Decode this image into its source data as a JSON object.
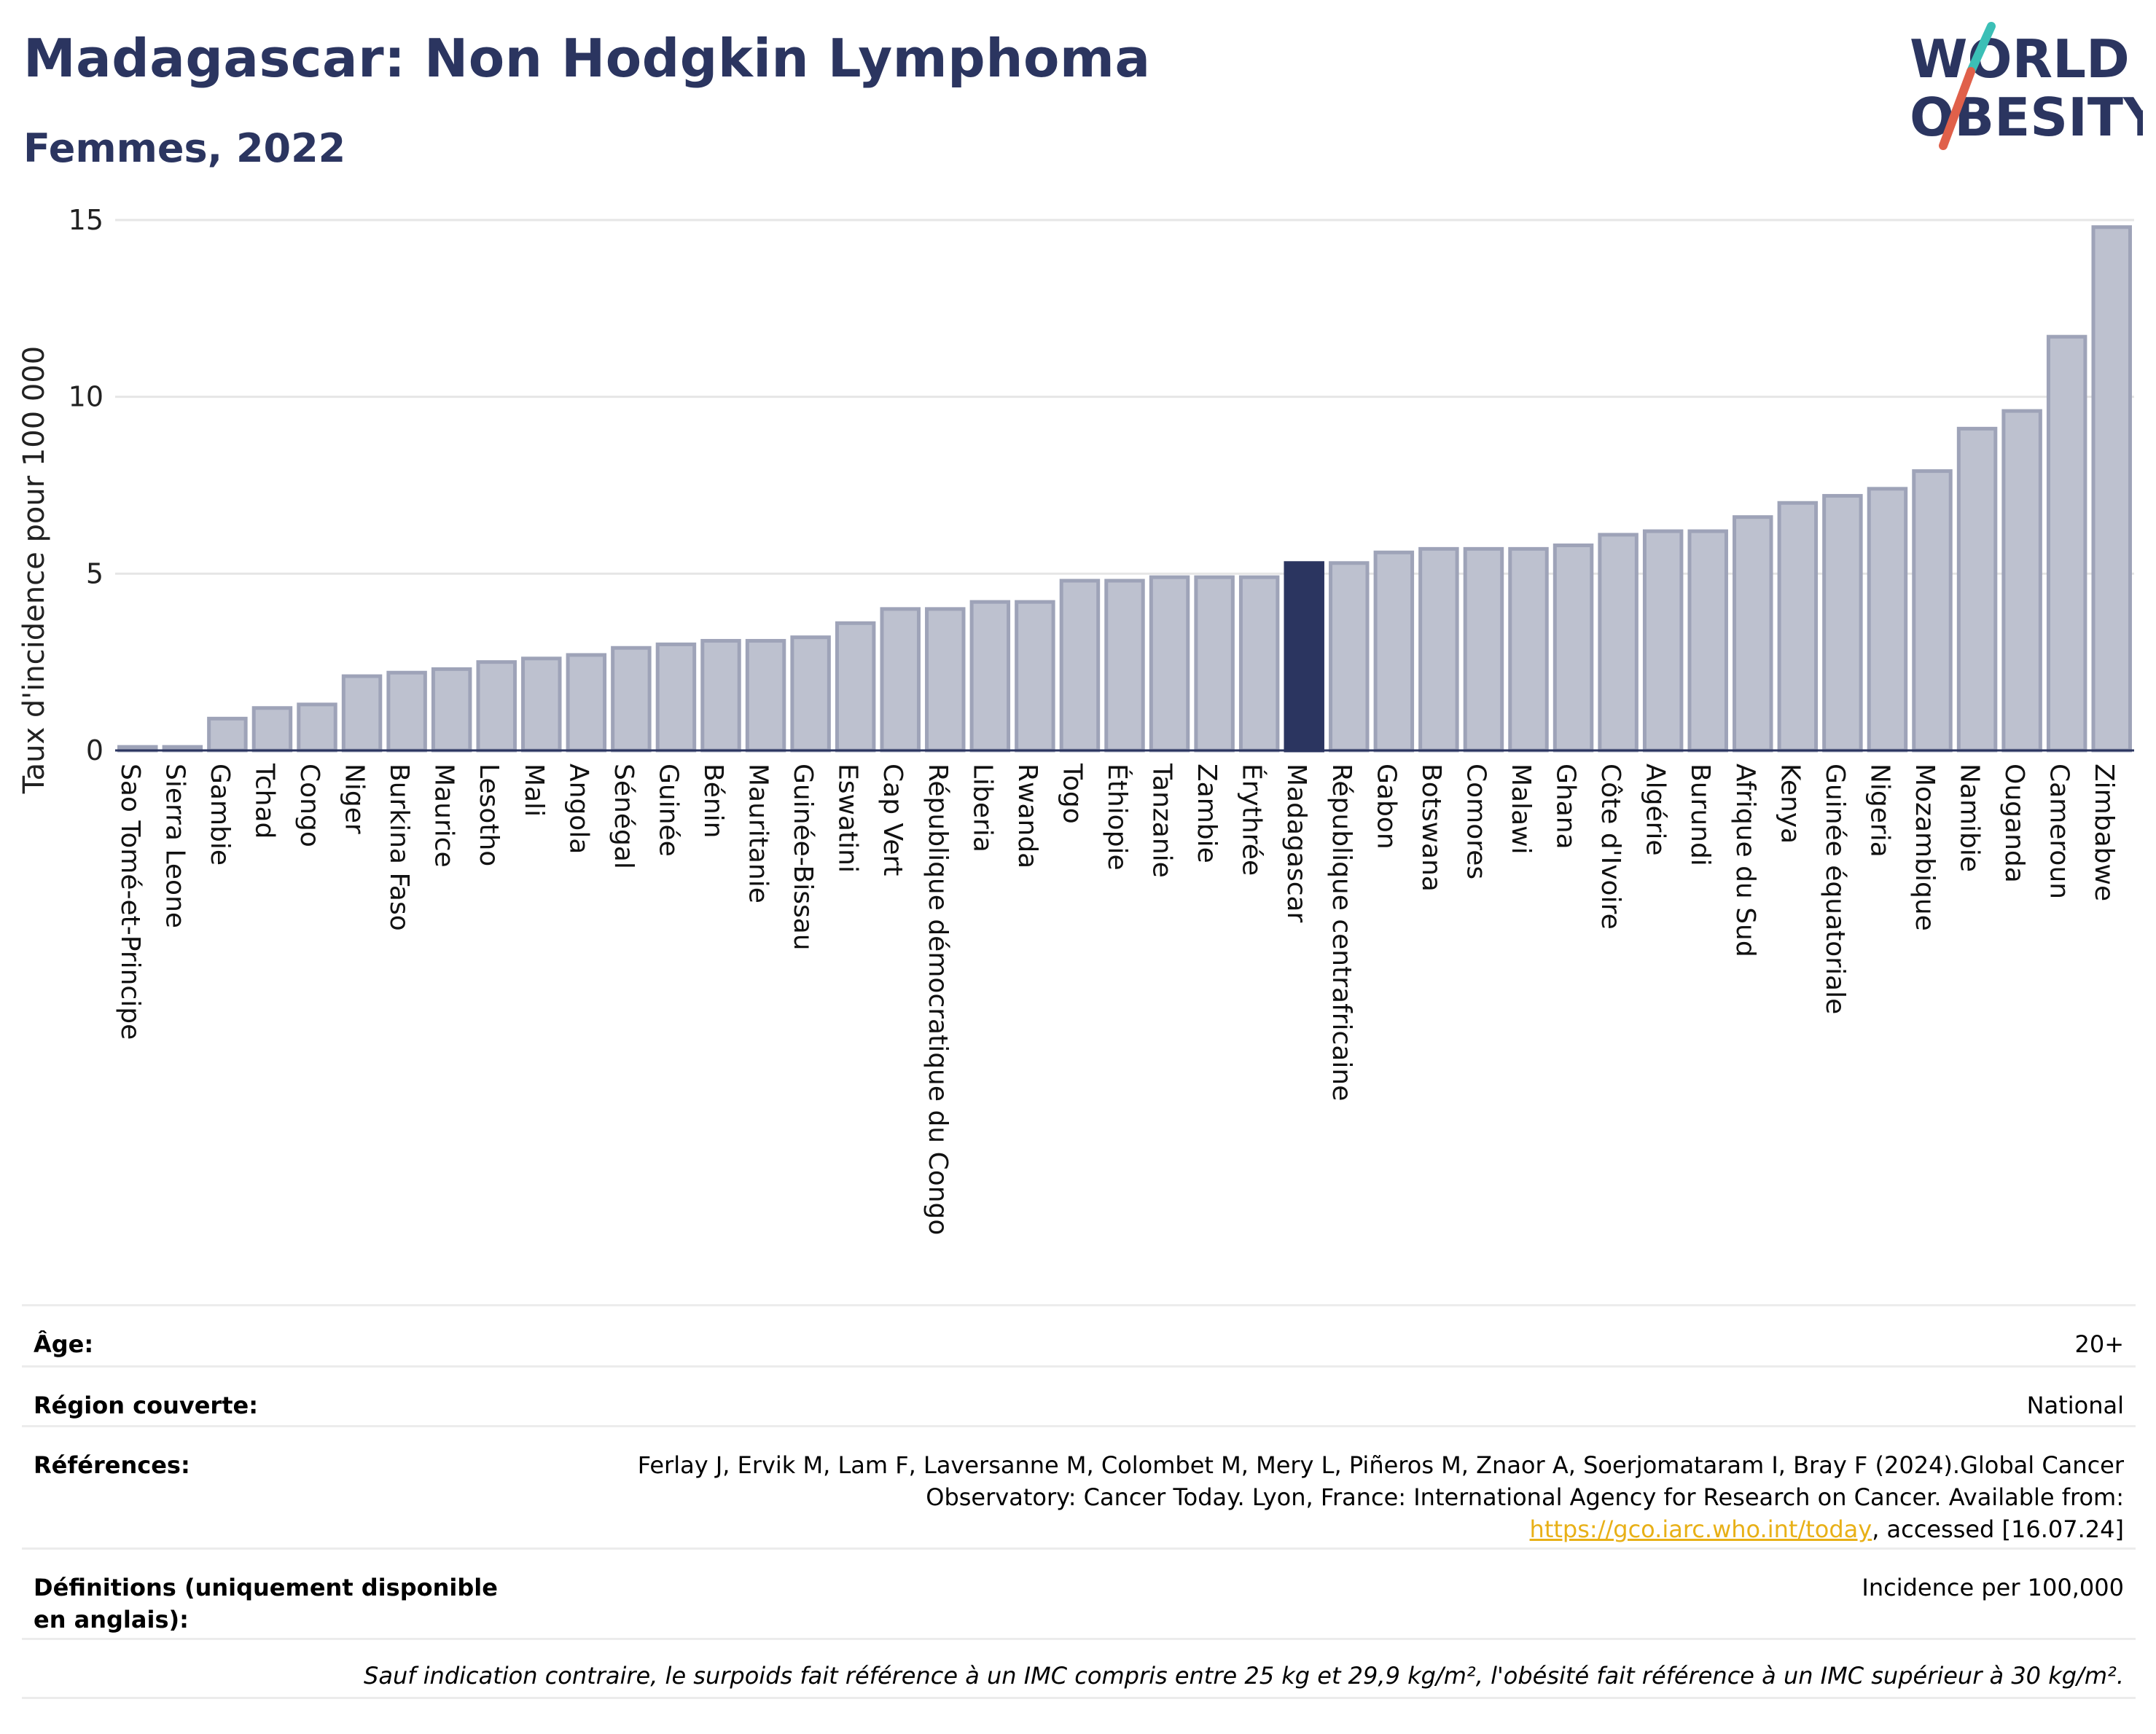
{
  "header": {
    "title": "Madagascar: Non Hodgkin Lymphoma",
    "subtitle": "Femmes, 2022"
  },
  "logo": {
    "line1": "WORLD",
    "line2": "OBESITY"
  },
  "colors": {
    "highlight": "#2b3560",
    "bar": "#bdc1cf",
    "bar_border": "#9ea3b8",
    "accent_link": "#e8b017"
  },
  "chart_data": {
    "type": "bar",
    "ylabel": "Taux d'incidence pour 100 000",
    "ylim": [
      0,
      15
    ],
    "yticks": [
      0,
      5,
      10,
      15
    ],
    "grid": true,
    "highlight": "Madagascar",
    "categories": [
      "Sao Tomé-et-Principe",
      "Sierra Leone",
      "Gambie",
      "Tchad",
      "Congo",
      "Niger",
      "Burkina Faso",
      "Maurice",
      "Lesotho",
      "Mali",
      "Angola",
      "Sénégal",
      "Guinée",
      "Bénin",
      "Mauritanie",
      "Guinée-Bissau",
      "Eswatini",
      "Cap Vert",
      "République démocratique du Congo",
      "Liberia",
      "Rwanda",
      "Togo",
      "Éthiopie",
      "Tanzanie",
      "Zambie",
      "Érythrée",
      "Madagascar",
      "République centrafricaine",
      "Gabon",
      "Botswana",
      "Comores",
      "Malawi",
      "Ghana",
      "Côte d'Ivoire",
      "Algérie",
      "Burundi",
      "Afrique du Sud",
      "Kenya",
      "Guinée équatoriale",
      "Nigeria",
      "Mozambique",
      "Namibie",
      "Ouganda",
      "Cameroun",
      "Zimbabwe"
    ],
    "values": [
      0.1,
      0.1,
      0.9,
      1.2,
      1.3,
      2.1,
      2.2,
      2.3,
      2.5,
      2.6,
      2.7,
      2.9,
      3.0,
      3.1,
      3.1,
      3.2,
      3.6,
      4.0,
      4.0,
      4.2,
      4.2,
      4.8,
      4.8,
      4.9,
      4.9,
      4.9,
      5.3,
      5.3,
      5.6,
      5.7,
      5.7,
      5.7,
      5.8,
      6.1,
      6.2,
      6.2,
      6.6,
      7.0,
      7.2,
      7.4,
      7.9,
      9.1,
      9.6,
      11.7,
      14.8
    ]
  },
  "info": {
    "age_label": "Âge:",
    "age_value": "20+",
    "region_label": "Région couverte:",
    "region_value": "National",
    "ref_label": "Références:",
    "ref_text": "Ferlay J, Ervik M, Lam F, Laversanne M, Colombet M, Mery L, Piñeros M, Znaor A, Soerjomataram I, Bray F (2024).Global Cancer Observatory: Cancer Today. Lyon, France: International Agency for Research on Cancer. Available from: ",
    "ref_link": "https://gco.iarc.who.int/today",
    "ref_after": ", accessed [16.07.24]",
    "def_label": "Définitions (uniquement disponible en anglais):",
    "def_value": "Incidence per 100,000",
    "note": "Sauf indication contraire, le surpoids fait référence à un IMC compris entre 25 kg et 29,9 kg/m², l'obésité fait référence à un IMC supérieur à 30 kg/m²."
  }
}
